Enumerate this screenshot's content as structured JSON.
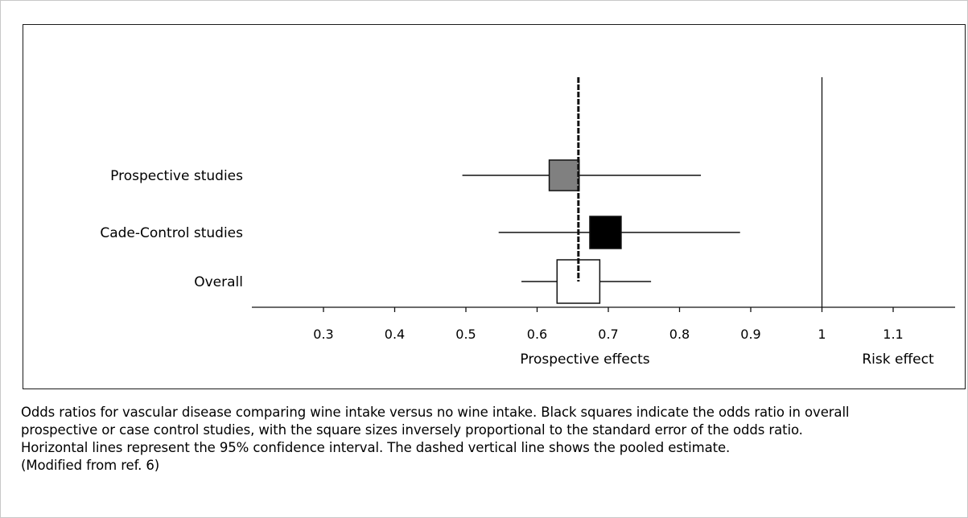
{
  "chart_data": {
    "type": "forest",
    "title": "",
    "xlabel_left": "Prospective effects",
    "xlabel_right": "Risk effect",
    "x_ticks": [
      0.3,
      0.4,
      0.5,
      0.6,
      0.7,
      0.8,
      0.9,
      1,
      1.1
    ],
    "x_tick_labels": [
      "0.3",
      "0.4",
      "0.5",
      "0.6",
      "0.7",
      "0.8",
      "0.9",
      "1",
      "1.1"
    ],
    "xlim": [
      0.2,
      1.18
    ],
    "reference_line": 1,
    "pooled_estimate": 0.658,
    "rows": [
      {
        "label": "Prospective studies",
        "estimate": 0.638,
        "ci_low": 0.495,
        "ci_high": 0.83,
        "box_lo": 0.617,
        "box_hi": 0.659,
        "fill": "#808080"
      },
      {
        "label": "Cade-Control studies",
        "estimate": 0.696,
        "ci_low": 0.546,
        "ci_high": 0.885,
        "box_lo": 0.674,
        "box_hi": 0.718,
        "fill": "#000000"
      },
      {
        "label": "Overall",
        "estimate": 0.658,
        "ci_low": 0.578,
        "ci_high": 0.76,
        "box_lo": 0.628,
        "box_hi": 0.688,
        "fill": "#ffffff"
      }
    ]
  },
  "caption": {
    "line1": "Odds ratios for vascular disease comparing wine intake versus no wine intake. Black squares indicate the odds ratio in overall",
    "line2": "prospective or case control studies, with the square sizes inversely proportional to the standard error of the odds ratio.",
    "line3": "Horizontal lines represent the 95% confidence interval. The dashed vertical line shows the pooled estimate.",
    "line4": "(Modified from ref. 6)"
  }
}
